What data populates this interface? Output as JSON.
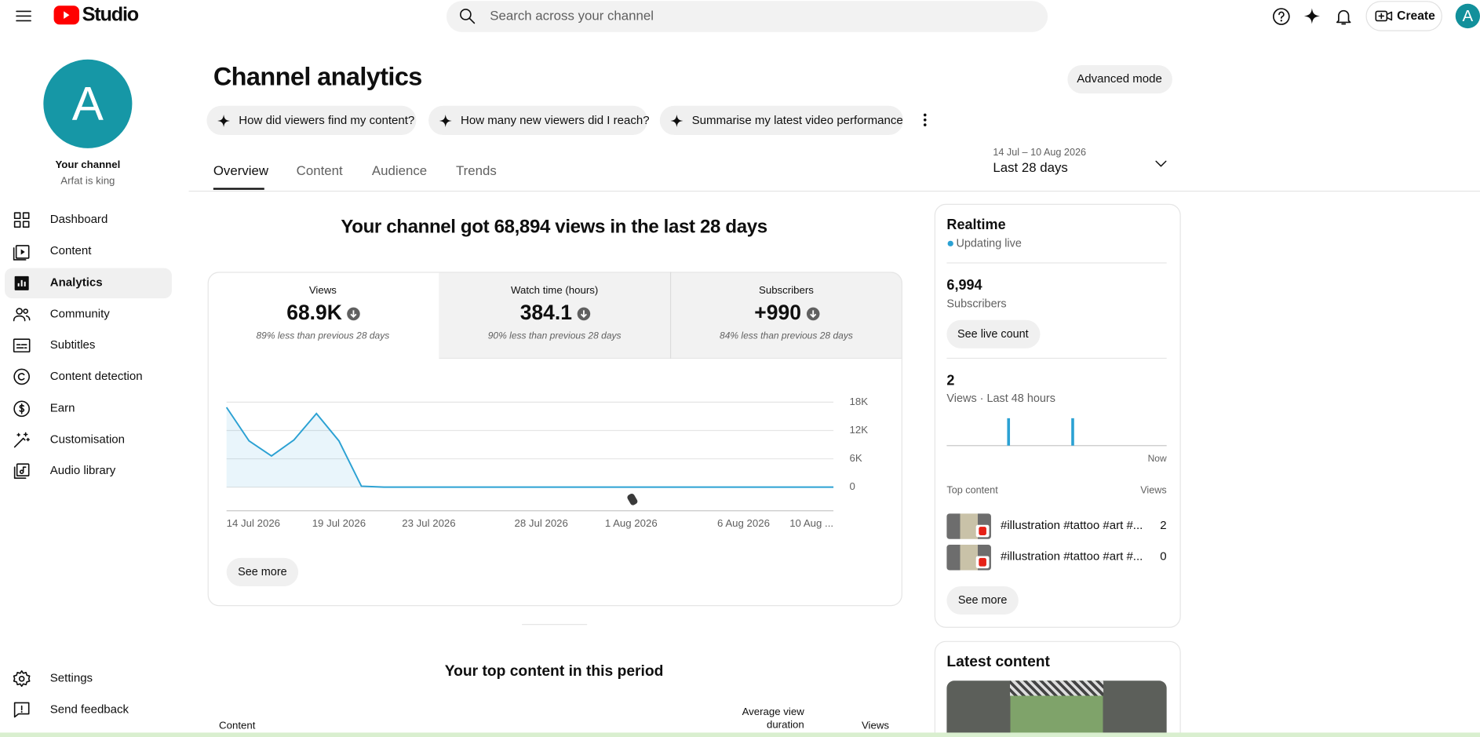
{
  "header": {
    "logo": "Studio",
    "search_placeholder": "Search across your channel",
    "create": "Create",
    "avatar": "A"
  },
  "sidebar": {
    "avatar": "A",
    "channel_title": "Your channel",
    "channel_name": "Arfat is king",
    "nav": [
      "Dashboard",
      "Content",
      "Analytics",
      "Community",
      "Subtitles",
      "Content detection",
      "Earn",
      "Customisation",
      "Audio library"
    ],
    "footer": [
      "Settings",
      "Send feedback"
    ]
  },
  "page": {
    "title": "Channel analytics",
    "advanced_mode": "Advanced mode",
    "prompts": [
      "How did viewers find my content?",
      "How many new viewers did I reach?",
      "Summarise my latest video performance"
    ],
    "tabs": [
      "Overview",
      "Content",
      "Audience",
      "Trends"
    ],
    "date_range": "14 Jul – 10 Aug 2026",
    "period": "Last 28 days",
    "headline": "Your channel got 68,894 views in the last 28 days"
  },
  "metrics": [
    {
      "label": "Views",
      "value": "68.9K",
      "note": "89% less than previous 28 days"
    },
    {
      "label": "Watch time (hours)",
      "value": "384.1",
      "note": "90% less than previous 28 days"
    },
    {
      "label": "Subscribers",
      "value": "+990",
      "note": "84% less than previous 28 days"
    }
  ],
  "chart_data": {
    "type": "line",
    "color": "#2ba1d3",
    "area": true,
    "grid": true,
    "categories": [
      "14 Jul 2026",
      null,
      null,
      null,
      null,
      "19 Jul 2026",
      null,
      null,
      null,
      "23 Jul 2026",
      null,
      null,
      null,
      null,
      "28 Jul 2026",
      null,
      null,
      null,
      "1 Aug 2026",
      null,
      null,
      null,
      null,
      "6 Aug 2026",
      null,
      null,
      null,
      "10 Aug ..."
    ],
    "values": [
      16900,
      9800,
      6600,
      10000,
      15600,
      9800,
      200,
      0,
      0,
      0,
      0,
      0,
      0,
      0,
      0,
      0,
      0,
      0,
      0,
      0,
      0,
      0,
      0,
      0,
      0,
      0,
      0,
      0
    ],
    "ylim": [
      0,
      18000
    ],
    "yticks": [
      0,
      {
        "value": 6000,
        "label": "6K"
      },
      {
        "value": 12000,
        "label": "12K"
      },
      {
        "value": 18000,
        "label": "18K"
      }
    ]
  },
  "chart_see_more": "See more",
  "top_content": {
    "title": "Your top content in this period",
    "columns": [
      "Content",
      "Average view duration",
      "Views"
    ]
  },
  "realtime": {
    "title": "Realtime",
    "status": "Updating live",
    "subscribers": "6,994",
    "subscribers_label": "Subscribers",
    "see_live_count": "See live count",
    "views": "2",
    "views_label": "Views · Last 48 hours",
    "now": "Now",
    "hourly_views": [
      0,
      0,
      0,
      0,
      0,
      0,
      0,
      0,
      0,
      0,
      0,
      0,
      0,
      1,
      0,
      0,
      0,
      0,
      0,
      0,
      0,
      0,
      0,
      0,
      0,
      0,
      0,
      1,
      0,
      0,
      0,
      0,
      0,
      0,
      0,
      0,
      0,
      0,
      0,
      0,
      0,
      0,
      0,
      0,
      0,
      0,
      0,
      0
    ],
    "top_content_label": "Top content",
    "views_column": "Views",
    "items": [
      {
        "title": "#illustration #tattoo #art #...",
        "views": "2"
      },
      {
        "title": "#illustration #tattoo #art #...",
        "views": "0"
      }
    ],
    "see_more": "See more"
  },
  "latest": {
    "title": "Latest content"
  }
}
